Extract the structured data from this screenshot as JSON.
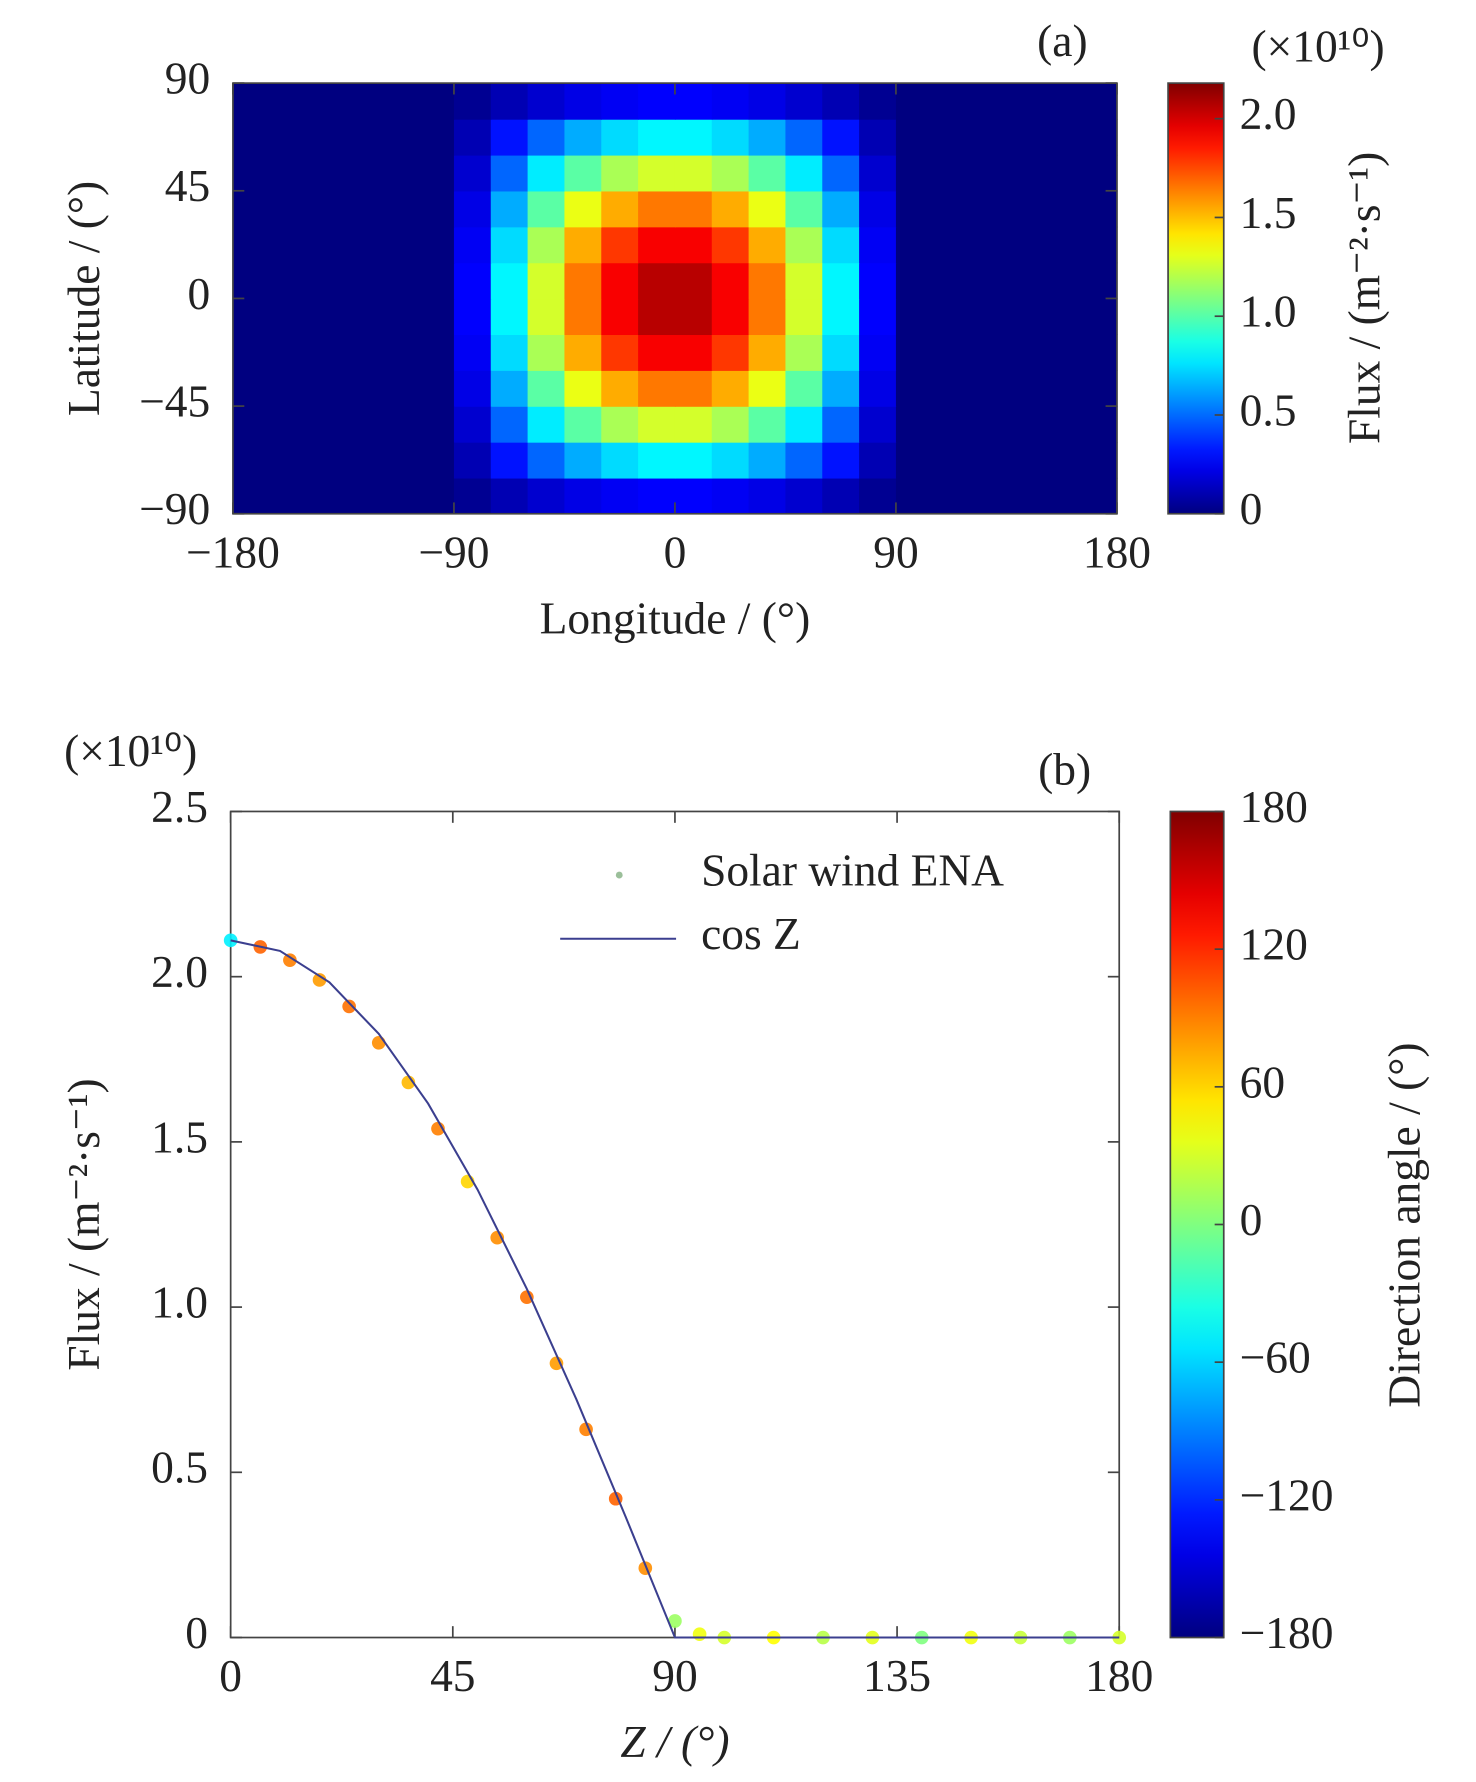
{
  "chart_data": [
    {
      "type": "heatmap",
      "panel_label": "(a)",
      "xlabel": "Longitude / (°)",
      "ylabel": "Latitude / (°)",
      "x": [
        -172.5,
        -157.5,
        -142.5,
        -127.5,
        -112.5,
        -97.5,
        -82.5,
        -67.5,
        -52.5,
        -37.5,
        -22.5,
        -7.5,
        7.5,
        22.5,
        37.5,
        52.5,
        67.5,
        82.5,
        97.5,
        112.5,
        127.5,
        142.5,
        157.5,
        172.5
      ],
      "y": [
        -82.5,
        -67.5,
        -52.5,
        -37.5,
        -22.5,
        -7.5,
        7.5,
        22.5,
        37.5,
        52.5,
        67.5,
        82.5
      ],
      "values": [
        [
          0,
          0,
          0,
          0,
          0,
          0,
          0.04,
          0.11,
          0.17,
          0.22,
          0.25,
          0.27,
          0.27,
          0.25,
          0.22,
          0.17,
          0.11,
          0.04,
          0,
          0,
          0,
          0,
          0,
          0
        ],
        [
          0,
          0,
          0,
          0,
          0,
          0,
          0.11,
          0.31,
          0.49,
          0.64,
          0.74,
          0.8,
          0.8,
          0.74,
          0.64,
          0.49,
          0.31,
          0.11,
          0,
          0,
          0,
          0,
          0,
          0
        ],
        [
          0,
          0,
          0,
          0,
          0,
          0,
          0.17,
          0.49,
          0.78,
          1.01,
          1.18,
          1.27,
          1.27,
          1.18,
          1.01,
          0.78,
          0.49,
          0.17,
          0,
          0,
          0,
          0,
          0,
          0
        ],
        [
          0,
          0,
          0,
          0,
          0,
          0,
          0.22,
          0.64,
          1.01,
          1.32,
          1.54,
          1.65,
          1.65,
          1.54,
          1.32,
          1.01,
          0.64,
          0.22,
          0,
          0,
          0,
          0,
          0,
          0
        ],
        [
          0,
          0,
          0,
          0,
          0,
          0,
          0.25,
          0.74,
          1.18,
          1.54,
          1.79,
          1.92,
          1.92,
          1.79,
          1.54,
          1.18,
          0.74,
          0.25,
          0,
          0,
          0,
          0,
          0,
          0
        ],
        [
          0,
          0,
          0,
          0,
          0,
          0,
          0.27,
          0.8,
          1.27,
          1.65,
          1.92,
          2.06,
          2.06,
          1.92,
          1.65,
          1.27,
          0.8,
          0.27,
          0,
          0,
          0,
          0,
          0,
          0
        ],
        [
          0,
          0,
          0,
          0,
          0,
          0,
          0.27,
          0.8,
          1.27,
          1.65,
          1.92,
          2.06,
          2.06,
          1.92,
          1.65,
          1.27,
          0.8,
          0.27,
          0,
          0,
          0,
          0,
          0,
          0
        ],
        [
          0,
          0,
          0,
          0,
          0,
          0,
          0.25,
          0.74,
          1.18,
          1.54,
          1.79,
          1.92,
          1.92,
          1.79,
          1.54,
          1.18,
          0.74,
          0.25,
          0,
          0,
          0,
          0,
          0,
          0
        ],
        [
          0,
          0,
          0,
          0,
          0,
          0,
          0.22,
          0.64,
          1.01,
          1.32,
          1.54,
          1.65,
          1.65,
          1.54,
          1.32,
          1.01,
          0.64,
          0.22,
          0,
          0,
          0,
          0,
          0,
          0
        ],
        [
          0,
          0,
          0,
          0,
          0,
          0,
          0.17,
          0.49,
          0.78,
          1.01,
          1.18,
          1.27,
          1.27,
          1.18,
          1.01,
          0.78,
          0.49,
          0.17,
          0,
          0,
          0,
          0,
          0,
          0
        ],
        [
          0,
          0,
          0,
          0,
          0,
          0,
          0.11,
          0.31,
          0.49,
          0.64,
          0.74,
          0.8,
          0.8,
          0.74,
          0.64,
          0.49,
          0.31,
          0.11,
          0,
          0,
          0,
          0,
          0,
          0
        ],
        [
          0,
          0,
          0,
          0,
          0,
          0,
          0.04,
          0.11,
          0.17,
          0.22,
          0.25,
          0.27,
          0.27,
          0.25,
          0.22,
          0.17,
          0.11,
          0.04,
          0,
          0,
          0,
          0,
          0,
          0
        ]
      ],
      "xlim": [
        -180,
        180
      ],
      "ylim": [
        -90,
        90
      ],
      "xticks": [
        {
          "value": -180,
          "label": "−180"
        },
        {
          "value": -90,
          "label": "−90"
        },
        0,
        90,
        180
      ],
      "yticks": [
        {
          "value": -90,
          "label": "−90"
        },
        {
          "value": -45,
          "label": "−45"
        },
        0,
        45,
        90
      ],
      "colormap": "jet",
      "colorbar": {
        "label": "Flux / (m⁻²·s⁻¹)",
        "multiplier": "(×10¹⁰)",
        "lim": [
          0,
          2.18
        ],
        "ticks": [
          0,
          0.5,
          {
            "value": 1,
            "label": "1.0"
          },
          1.5,
          {
            "value": 2,
            "label": "2.0"
          }
        ]
      }
    },
    {
      "type": "scatter",
      "panel_label": "(b)",
      "multiplier": "(×10¹⁰)",
      "xlabel": "Z / (°)",
      "ylabel": "Flux / (m⁻²·s⁻¹)",
      "xlim": [
        0,
        180
      ],
      "ylim": [
        0,
        2.5
      ],
      "xticks": [
        0,
        45,
        90,
        135,
        180
      ],
      "yticks": [
        0,
        0.5,
        {
          "value": 1,
          "label": "1.0"
        },
        1.5,
        {
          "value": 2,
          "label": "2.0"
        },
        2.5
      ],
      "colormap": "jet",
      "series": [
        {
          "name": "Solar wind ENA",
          "type": "scatter",
          "x": [
            0,
            6,
            12,
            18,
            24,
            30,
            36,
            42,
            48,
            54,
            60,
            66,
            72,
            78,
            84,
            90,
            95,
            100,
            110,
            120,
            130,
            140,
            150,
            160,
            170,
            180
          ],
          "values": [
            2.11,
            2.09,
            2.05,
            1.99,
            1.91,
            1.8,
            1.68,
            1.54,
            1.38,
            1.21,
            1.03,
            0.83,
            0.63,
            0.42,
            0.21,
            0.05,
            0.01,
            0,
            0,
            0,
            0,
            0,
            0,
            0,
            0,
            0
          ],
          "color_values": [
            -50,
            100,
            90,
            80,
            95,
            85,
            70,
            90,
            60,
            85,
            95,
            80,
            90,
            100,
            85,
            10,
            40,
            30,
            45,
            20,
            35,
            0,
            40,
            25,
            10,
            30
          ]
        },
        {
          "name": "cos Z",
          "type": "line",
          "color": "#3b3f8f",
          "x": [
            0,
            10,
            20,
            30,
            40,
            50,
            60,
            70,
            80,
            90,
            180
          ],
          "values": [
            2.11,
            2.078,
            1.983,
            1.827,
            1.616,
            1.356,
            1.055,
            0.722,
            0.366,
            0,
            0
          ]
        }
      ],
      "colorbar": {
        "label": "Direction angle / (°)",
        "lim": [
          -180,
          180
        ],
        "ticks": [
          {
            "value": -180,
            "label": "−180"
          },
          {
            "value": -120,
            "label": "−120"
          },
          {
            "value": -60,
            "label": "−60"
          },
          0,
          60,
          120,
          180
        ]
      }
    }
  ]
}
